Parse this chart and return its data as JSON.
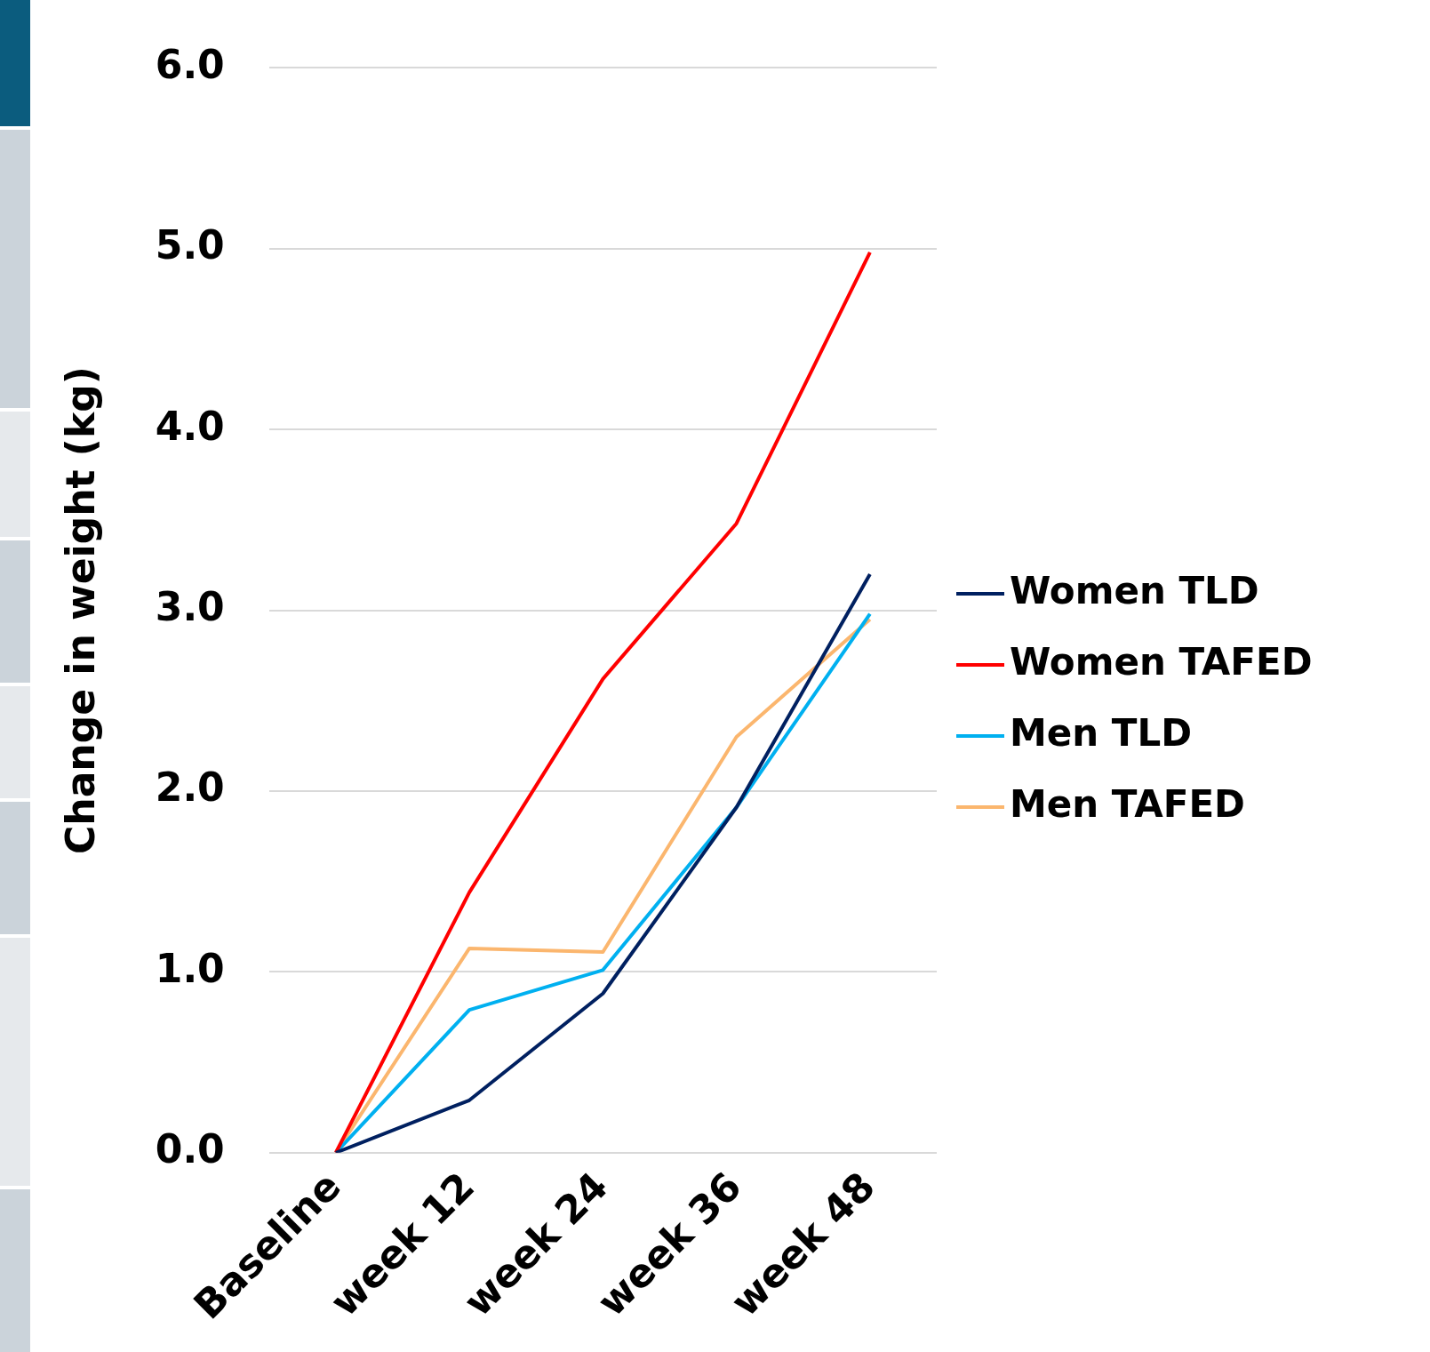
{
  "chart_data": {
    "type": "line",
    "ylabel": "Change in weight (kg)",
    "categories": [
      "Baseline",
      "week 12",
      "week 24",
      "week 36",
      "week 48"
    ],
    "series": [
      {
        "name": "Women TLD",
        "color": "#002060",
        "values": [
          0,
          0.29,
          0.88,
          1.91,
          3.2
        ]
      },
      {
        "name": "Women TAFED",
        "color": "#ff0000",
        "values": [
          0,
          1.44,
          2.62,
          3.48,
          4.98
        ]
      },
      {
        "name": "Men TLD",
        "color": "#00b0f0",
        "values": [
          0,
          0.79,
          1.01,
          1.91,
          2.98
        ]
      },
      {
        "name": "Men TAFED",
        "color": "#fbb66e",
        "values": [
          0,
          1.13,
          1.11,
          2.3,
          2.95
        ]
      }
    ],
    "ylim": [
      0,
      6
    ],
    "yticks": [
      {
        "value": 0,
        "label": "0.0"
      },
      {
        "value": 1,
        "label": "1.0"
      },
      {
        "value": 2,
        "label": "2.0"
      },
      {
        "value": 3,
        "label": "3.0"
      },
      {
        "value": 4,
        "label": "4.0"
      },
      {
        "value": 5,
        "label": "5.0"
      },
      {
        "value": 6,
        "label": "6.0"
      }
    ],
    "grid": "y",
    "legend": "right",
    "marker": "none",
    "line_style": "solid"
  }
}
